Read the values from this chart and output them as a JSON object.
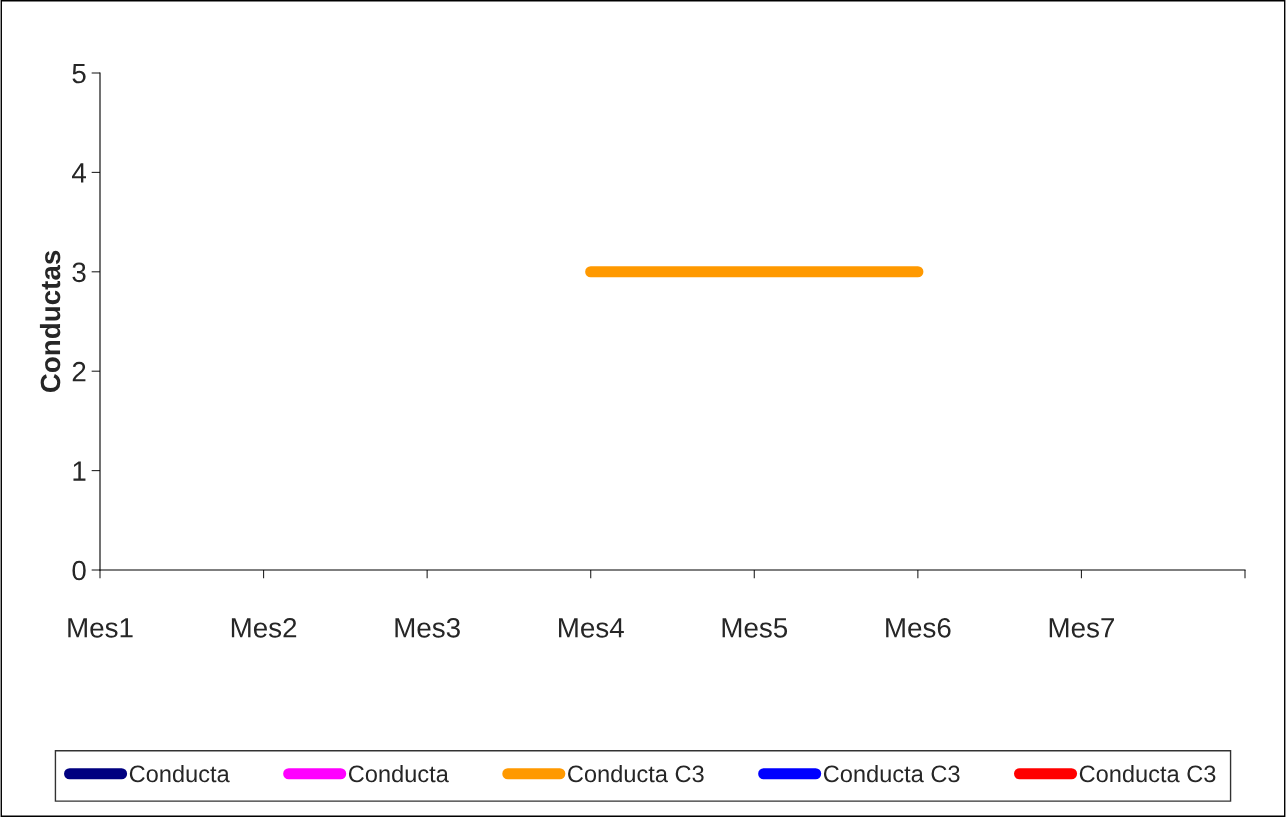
{
  "chart_data": {
    "type": "line",
    "ylabel": "Conductas",
    "categories": [
      "Mes1",
      "Mes2",
      "Mes3",
      "Mes4",
      "Mes5",
      "Mes6",
      "Mes7"
    ],
    "series": [
      {
        "name": "Conducta",
        "color": "#000080",
        "values": [
          null,
          null,
          null,
          null,
          null,
          null,
          null
        ]
      },
      {
        "name": "Conducta",
        "color": "#ff00ff",
        "values": [
          null,
          null,
          null,
          null,
          null,
          null,
          null
        ]
      },
      {
        "name": "Conducta C3",
        "color": "#ff9900",
        "values": [
          null,
          null,
          null,
          3,
          3,
          3,
          null
        ]
      },
      {
        "name": "Conducta C3",
        "color": "#0000ff",
        "values": [
          null,
          null,
          null,
          null,
          null,
          null,
          null
        ]
      },
      {
        "name": "Conducta C3",
        "color": "#ff0000",
        "values": [
          null,
          null,
          null,
          null,
          null,
          null,
          null
        ]
      }
    ],
    "ylim": [
      0,
      5
    ],
    "yticks": [
      0,
      1,
      2,
      3,
      4,
      5
    ],
    "grid": false,
    "legend": "bottom",
    "marker": "none",
    "line_style": "solid"
  }
}
